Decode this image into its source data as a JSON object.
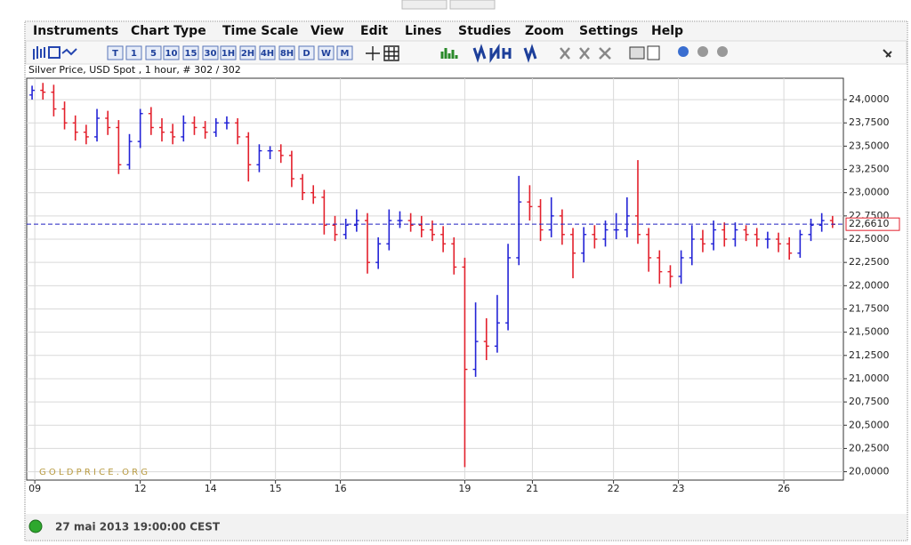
{
  "menu": [
    "Instruments",
    "Chart Type",
    "Time Scale",
    "View",
    "Edit",
    "Lines",
    "Studies",
    "Zoom",
    "Settings",
    "Help"
  ],
  "toolbar_buttons": [
    "T",
    "1",
    "5",
    "10",
    "15",
    "30",
    "1H",
    "2H",
    "4H",
    "8H",
    "D",
    "W",
    "M"
  ],
  "status": "27 mai 2013 19:00:00 CEST",
  "chart_data": {
    "type": "ohlc",
    "subtitle": "Silver Price, USD Spot , 1 hour, # 302 / 302",
    "watermark": "G O L D P R I C E . O R G",
    "up_color": "#2323d6",
    "down_color": "#e3202c",
    "grid": true,
    "xlim": [
      0,
      302
    ],
    "xticks": [
      {
        "value": 3,
        "label": "09"
      },
      {
        "value": 42,
        "label": "12"
      },
      {
        "value": 68,
        "label": "14"
      },
      {
        "value": 92,
        "label": "15"
      },
      {
        "value": 116,
        "label": "16"
      },
      {
        "value": 162,
        "label": "19"
      },
      {
        "value": 187,
        "label": "21"
      },
      {
        "value": 217,
        "label": "22"
      },
      {
        "value": 241,
        "label": "23"
      },
      {
        "value": 280,
        "label": "26"
      }
    ],
    "ylim": [
      19.91,
      24.23
    ],
    "yticks": [
      {
        "value": 24.0,
        "label": "24,0000"
      },
      {
        "value": 23.75,
        "label": "23,7500"
      },
      {
        "value": 23.5,
        "label": "23,5000"
      },
      {
        "value": 23.25,
        "label": "23,2500"
      },
      {
        "value": 23.0,
        "label": "23,0000"
      },
      {
        "value": 22.75,
        "label": "22,7500"
      },
      {
        "value": 22.5,
        "label": "22,5000"
      },
      {
        "value": 22.25,
        "label": "22,2500"
      },
      {
        "value": 22.0,
        "label": "22,0000"
      },
      {
        "value": 21.75,
        "label": "21,7500"
      },
      {
        "value": 21.5,
        "label": "21,5000"
      },
      {
        "value": 21.25,
        "label": "21,2500"
      },
      {
        "value": 21.0,
        "label": "21,0000"
      },
      {
        "value": 20.75,
        "label": "20,7500"
      },
      {
        "value": 20.5,
        "label": "20,5000"
      },
      {
        "value": 20.25,
        "label": "20,2500"
      },
      {
        "value": 20.0,
        "label": "20,0000"
      }
    ],
    "last_price": {
      "value": 22.661,
      "label": "22,6610"
    },
    "x": [
      2,
      6,
      10,
      14,
      18,
      22,
      26,
      30,
      34,
      38,
      42,
      46,
      50,
      54,
      58,
      62,
      66,
      70,
      74,
      78,
      82,
      86,
      90,
      94,
      98,
      102,
      106,
      110,
      114,
      118,
      122,
      126,
      130,
      134,
      138,
      142,
      146,
      150,
      154,
      158,
      162,
      166,
      170,
      174,
      178,
      182,
      186,
      190,
      194,
      198,
      202,
      206,
      210,
      214,
      218,
      222,
      226,
      230,
      234,
      238,
      242,
      246,
      250,
      254,
      258,
      262,
      266,
      270,
      274,
      278,
      282,
      286,
      290,
      294,
      298
    ],
    "open": [
      24.05,
      24.1,
      24.08,
      23.9,
      23.75,
      23.65,
      23.6,
      23.8,
      23.7,
      23.3,
      23.55,
      23.85,
      23.7,
      23.65,
      23.6,
      23.75,
      23.7,
      23.65,
      23.75,
      23.75,
      23.6,
      23.3,
      23.45,
      23.45,
      23.4,
      23.15,
      23.0,
      22.95,
      22.65,
      22.55,
      22.65,
      22.7,
      22.25,
      22.45,
      22.7,
      22.7,
      22.65,
      22.6,
      22.55,
      22.45,
      22.2,
      21.1,
      21.4,
      21.35,
      21.6,
      22.3,
      22.9,
      22.85,
      22.6,
      22.75,
      22.55,
      22.35,
      22.55,
      22.5,
      22.6,
      22.6,
      22.75,
      22.55,
      22.3,
      22.15,
      22.1,
      22.3,
      22.5,
      22.45,
      22.6,
      22.5,
      22.6,
      22.55,
      22.5,
      22.5,
      22.45,
      22.35,
      22.55,
      22.65,
      22.7
    ],
    "high": [
      24.15,
      24.18,
      24.16,
      23.98,
      23.83,
      23.73,
      23.9,
      23.88,
      23.78,
      23.63,
      23.9,
      23.92,
      23.8,
      23.74,
      23.83,
      23.82,
      23.77,
      23.8,
      23.82,
      23.8,
      23.65,
      23.52,
      23.5,
      23.52,
      23.45,
      23.2,
      23.08,
      23.03,
      22.75,
      22.72,
      22.82,
      22.78,
      22.52,
      22.82,
      22.8,
      22.78,
      22.75,
      22.7,
      22.64,
      22.52,
      22.3,
      21.82,
      21.65,
      21.9,
      22.45,
      23.18,
      23.08,
      22.93,
      22.95,
      22.82,
      22.62,
      22.63,
      22.65,
      22.7,
      22.78,
      22.95,
      23.35,
      22.62,
      22.38,
      22.22,
      22.38,
      22.65,
      22.6,
      22.7,
      22.68,
      22.68,
      22.65,
      22.62,
      22.58,
      22.57,
      22.52,
      22.6,
      22.72,
      22.78,
      22.75
    ],
    "low": [
      24.0,
      24.0,
      23.82,
      23.68,
      23.56,
      23.52,
      23.55,
      23.62,
      23.2,
      23.25,
      23.48,
      23.62,
      23.55,
      23.52,
      23.55,
      23.62,
      23.58,
      23.6,
      23.68,
      23.52,
      23.12,
      23.22,
      23.36,
      23.32,
      23.06,
      22.92,
      22.88,
      22.55,
      22.48,
      22.5,
      22.58,
      22.13,
      22.18,
      22.38,
      22.62,
      22.58,
      22.52,
      22.48,
      22.36,
      22.12,
      20.05,
      21.02,
      21.2,
      21.28,
      21.52,
      22.22,
      22.7,
      22.48,
      22.52,
      22.44,
      22.08,
      22.25,
      22.4,
      22.42,
      22.5,
      22.52,
      22.45,
      22.15,
      22.02,
      21.98,
      22.02,
      22.22,
      22.36,
      22.38,
      22.42,
      22.42,
      22.48,
      22.42,
      22.4,
      22.36,
      22.28,
      22.3,
      22.48,
      22.58,
      22.62
    ],
    "close": [
      24.1,
      24.08,
      23.9,
      23.75,
      23.65,
      23.6,
      23.8,
      23.7,
      23.3,
      23.55,
      23.85,
      23.7,
      23.65,
      23.6,
      23.75,
      23.7,
      23.65,
      23.75,
      23.75,
      23.6,
      23.3,
      23.45,
      23.45,
      23.4,
      23.15,
      23.0,
      22.95,
      22.65,
      22.55,
      22.65,
      22.7,
      22.25,
      22.45,
      22.7,
      22.7,
      22.65,
      22.6,
      22.55,
      22.45,
      22.2,
      21.1,
      21.4,
      21.35,
      21.6,
      22.3,
      22.9,
      22.85,
      22.6,
      22.75,
      22.55,
      22.35,
      22.55,
      22.5,
      22.6,
      22.6,
      22.75,
      22.55,
      22.3,
      22.15,
      22.1,
      22.3,
      22.5,
      22.45,
      22.6,
      22.5,
      22.6,
      22.55,
      22.5,
      22.5,
      22.45,
      22.35,
      22.55,
      22.65,
      22.7,
      22.66
    ]
  }
}
